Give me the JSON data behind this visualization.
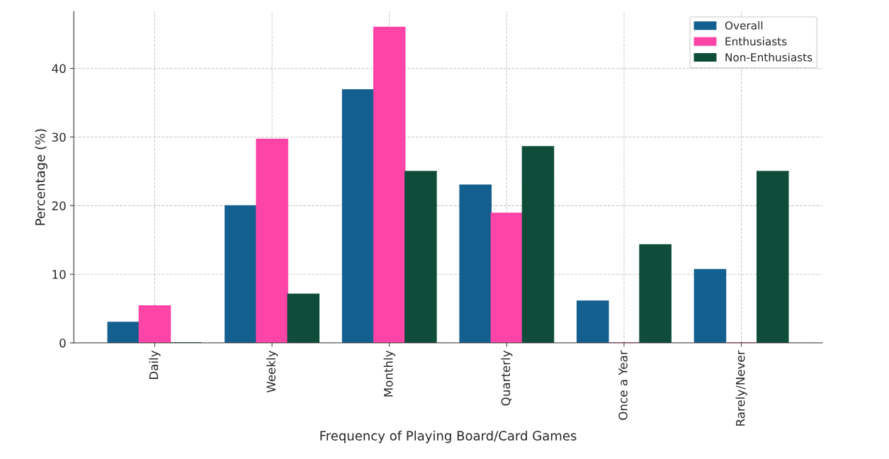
{
  "chart_data": {
    "type": "bar",
    "xlabel": "Frequency of Playing Board/Card Games",
    "ylabel": "Percentage (%)",
    "categories": [
      "Daily",
      "Weekly",
      "Monthly",
      "Quarterly",
      "Once a Year",
      "Rarely/Never"
    ],
    "series": [
      {
        "name": "Overall",
        "color": "#135f8f",
        "values": [
          3.0,
          20.0,
          36.9,
          23.0,
          6.1,
          10.7
        ]
      },
      {
        "name": "Enthusiasts",
        "color": "#ff44a8",
        "values": [
          5.4,
          29.7,
          46.0,
          18.9,
          0,
          0
        ]
      },
      {
        "name": "Non-Enthusiasts",
        "color": "#0f4d3a",
        "values": [
          0,
          7.1,
          25.0,
          28.6,
          14.3,
          25.0
        ]
      }
    ],
    "ylim": [
      0,
      48.3
    ],
    "yticks": [
      0,
      10,
      20,
      30,
      40
    ],
    "grid": true,
    "legend": "top right"
  }
}
